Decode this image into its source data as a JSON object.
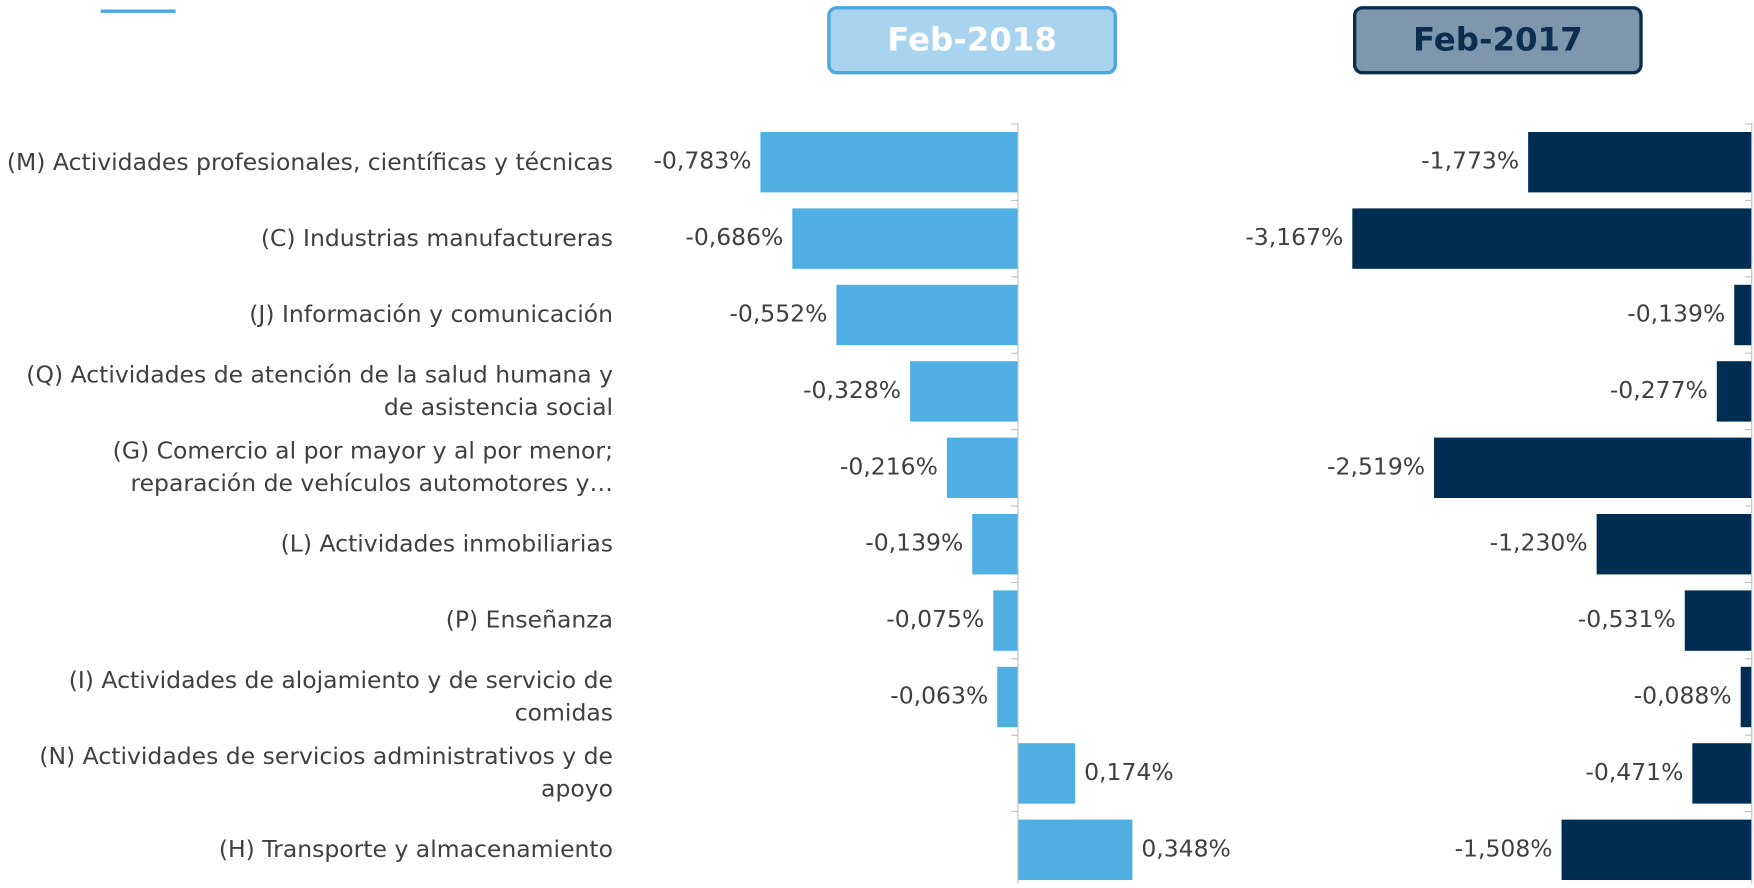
{
  "chart_data": [
    {
      "type": "bar",
      "orientation": "horizontal",
      "title": "Feb-2018",
      "categories": [
        "(M) Actividades profesionales, científicas y técnicas",
        "(C) Industrias manufactureras",
        "(J) Información y comunicación",
        "(Q) Actividades de atención de la salud humana y de asistencia social",
        "(G) Comercio al por mayor y al por menor; reparación de vehículos automotores y…",
        "(L) Actividades inmobiliarias",
        "(P) Enseñanza",
        "(I) Actividades de alojamiento y de servicio de comidas",
        "(N) Actividades de servicios administrativos y de apoyo",
        "(H) Transporte y almacenamiento"
      ],
      "values": [
        -0.783,
        -0.686,
        -0.552,
        -0.328,
        -0.216,
        -0.139,
        -0.075,
        -0.063,
        0.174,
        0.348
      ],
      "value_labels": [
        "-0,783%",
        "-0,686%",
        "-0,552%",
        "-0,328%",
        "-0,216%",
        "-0,139%",
        "-0,075%",
        "-0,063%",
        "0,174%",
        "0,348%"
      ],
      "color": "#4faee2",
      "xlim": [
        -0.8,
        0.4
      ]
    },
    {
      "type": "bar",
      "orientation": "horizontal",
      "title": "Feb-2017",
      "values": [
        -1.773,
        -3.167,
        -0.139,
        -0.277,
        -2.519,
        -1.23,
        -0.531,
        -0.088,
        -0.471,
        -1.508
      ],
      "value_labels": [
        "-1,773%",
        "-3,167%",
        "-0,139%",
        "-0,277%",
        "-2,519%",
        "-1,230%",
        "-0,531%",
        "-0,088%",
        "-0,471%",
        "-1,508%"
      ],
      "color": "#002d52",
      "xlim": [
        -3.2,
        0
      ]
    }
  ]
}
